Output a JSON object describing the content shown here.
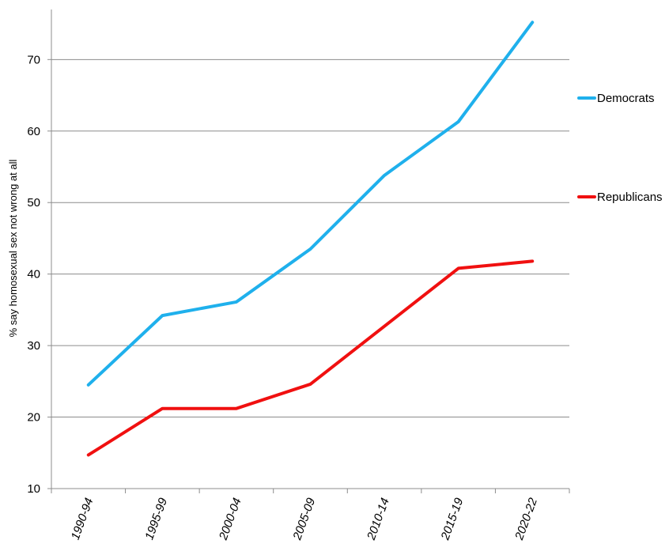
{
  "chart_data": {
    "type": "line",
    "title": "",
    "xlabel": "",
    "ylabel": "% say homosexual sex not wrong at all",
    "categories": [
      "1990-94",
      "1995-99",
      "2000-04",
      "2005-09",
      "2010-14",
      "2015-19",
      "2020-22"
    ],
    "ylim": [
      10,
      77
    ],
    "yticks": [
      10,
      20,
      30,
      40,
      50,
      60,
      70
    ],
    "grid": true,
    "legend_position": "right",
    "series": [
      {
        "name": "Democrats",
        "color": "#1fb0ec",
        "values": [
          24.5,
          34.2,
          36.1,
          43.5,
          53.8,
          61.3,
          75.2
        ]
      },
      {
        "name": "Republicans",
        "color": "#f01010",
        "values": [
          14.7,
          21.2,
          21.2,
          24.6,
          32.7,
          40.8,
          41.8
        ]
      }
    ]
  }
}
